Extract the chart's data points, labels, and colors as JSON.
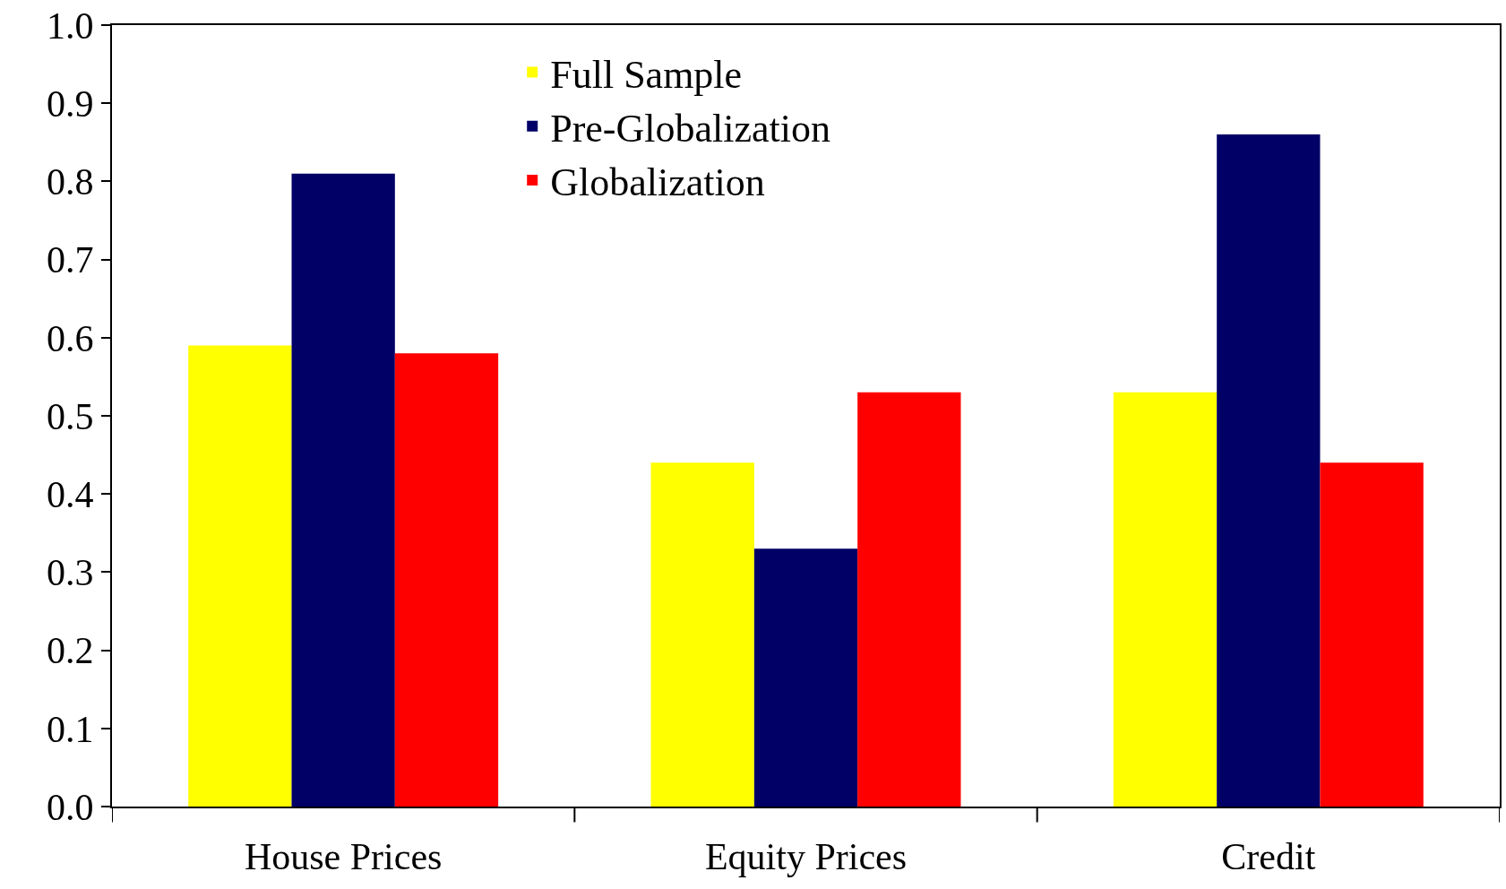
{
  "chart_data": {
    "type": "bar",
    "categories": [
      "House Prices",
      "Equity Prices",
      "Credit"
    ],
    "series": [
      {
        "name": "Full Sample",
        "color": "#ffff00",
        "values": [
          0.59,
          0.44,
          0.53
        ]
      },
      {
        "name": "Pre-Globalization",
        "color": "#000066",
        "values": [
          0.81,
          0.33,
          0.86
        ]
      },
      {
        "name": "Globalization",
        "color": "#ff0000",
        "values": [
          0.58,
          0.53,
          0.44
        ]
      }
    ],
    "ylim": [
      0,
      1.0
    ],
    "yticks": [
      {
        "value": 0,
        "label": "0.0"
      },
      0.1,
      0.2,
      0.3,
      0.4,
      0.5,
      0.6,
      0.7,
      0.8,
      0.9,
      {
        "value": 1.0,
        "label": "1.0"
      }
    ],
    "legend": "top left"
  }
}
